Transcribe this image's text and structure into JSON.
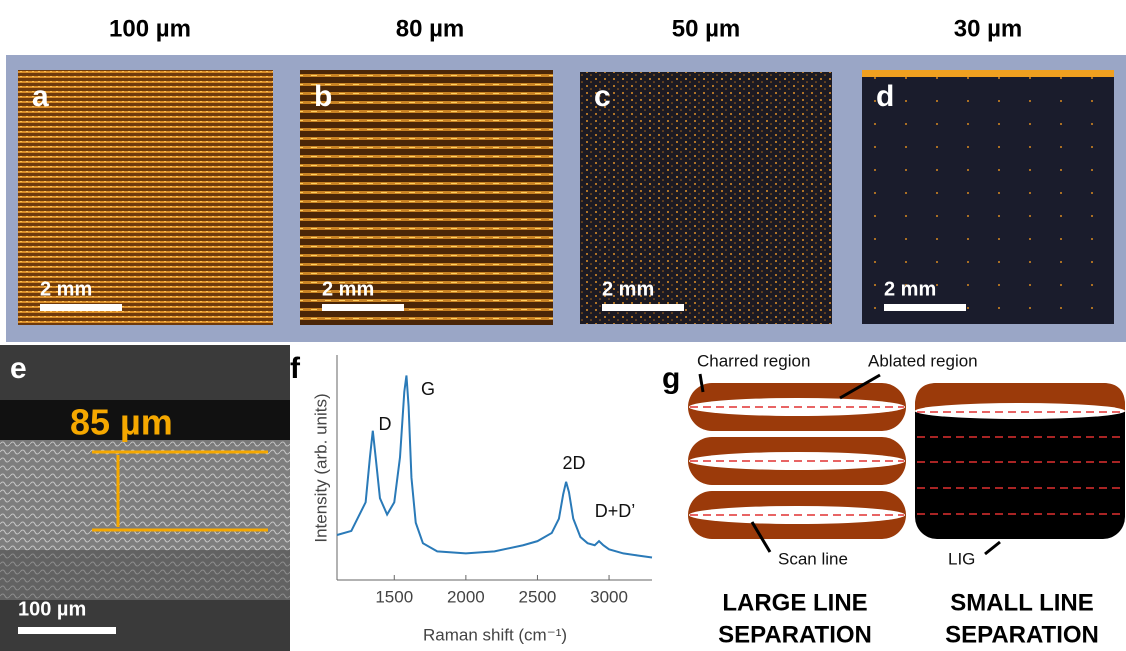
{
  "column_headers": [
    "100 µm",
    "80 µm",
    "50 µm",
    "30 µm"
  ],
  "optical_images": [
    {
      "label": "a",
      "scale_bar": "2 mm"
    },
    {
      "label": "b",
      "scale_bar": "2 mm"
    },
    {
      "label": "c",
      "scale_bar": "2 mm"
    },
    {
      "label": "d",
      "scale_bar": "2 mm"
    }
  ],
  "sem": {
    "label": "e",
    "thickness": "85 µm",
    "scale_bar": "100 µm"
  },
  "chart_data": {
    "type": "line",
    "panel_label": "f",
    "x_label": "Raman shift (cm⁻¹)",
    "y_label": "Intensity (arb. units)",
    "peak_labels": [
      "D",
      "G",
      "2D",
      "D+D’"
    ],
    "x": [
      1100,
      1200,
      1300,
      1330,
      1350,
      1370,
      1400,
      1450,
      1500,
      1540,
      1570,
      1585,
      1600,
      1620,
      1650,
      1700,
      1800,
      2000,
      2200,
      2400,
      2500,
      2600,
      2650,
      2680,
      2700,
      2720,
      2750,
      2800,
      2850,
      2900,
      2930,
      2960,
      3000,
      3100,
      3200,
      3300
    ],
    "values": [
      0.12,
      0.14,
      0.28,
      0.5,
      0.63,
      0.5,
      0.3,
      0.22,
      0.28,
      0.5,
      0.82,
      0.9,
      0.75,
      0.4,
      0.18,
      0.08,
      0.04,
      0.03,
      0.04,
      0.07,
      0.09,
      0.13,
      0.2,
      0.32,
      0.38,
      0.33,
      0.2,
      0.11,
      0.08,
      0.07,
      0.09,
      0.07,
      0.05,
      0.03,
      0.02,
      0.01
    ],
    "color": "#2a7ab8",
    "xlim": [
      1100,
      3300
    ],
    "xticks": [
      1500,
      2000,
      2500,
      3000
    ],
    "ylim": [
      -0.1,
      1
    ]
  },
  "schematic": {
    "label": "g",
    "charred_region": "Charred region",
    "ablated_region": "Ablated region",
    "scan_line": "Scan line",
    "lig": "LIG",
    "left_title": [
      "LARGE LINE",
      "SEPARATION"
    ],
    "right_title": [
      "SMALL LINE",
      "SEPARATION"
    ]
  }
}
